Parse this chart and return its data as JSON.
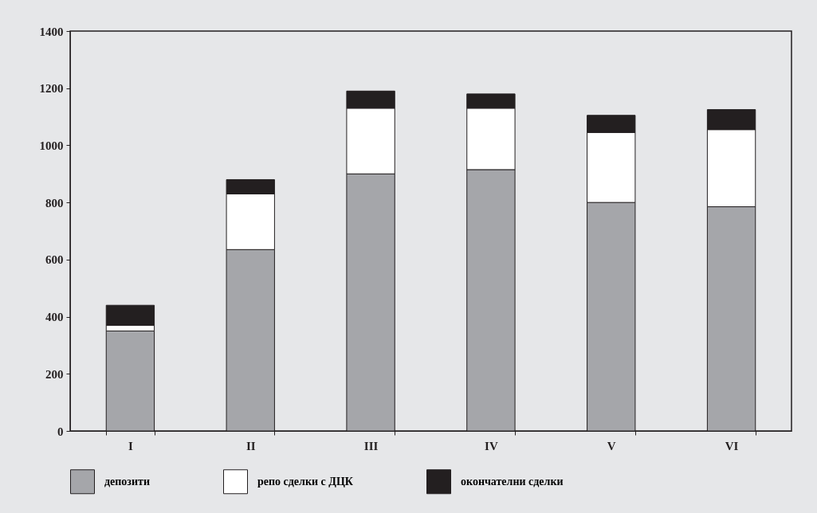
{
  "chart_data": {
    "type": "bar",
    "stacked": true,
    "categories": [
      "I",
      "II",
      "III",
      "IV",
      "V",
      "VI"
    ],
    "series": [
      {
        "name": "депозити",
        "color": "#a5a6aa",
        "values": [
          350,
          635,
          900,
          915,
          800,
          785
        ]
      },
      {
        "name": "репо сделки с ДЦК",
        "color": "#ffffff",
        "values": [
          20,
          195,
          230,
          215,
          245,
          270
        ]
      },
      {
        "name": "окончателни сделки",
        "color": "#231f20",
        "values": [
          70,
          50,
          60,
          50,
          60,
          70
        ]
      }
    ],
    "ylim": [
      0,
      1400
    ],
    "yticks": [
      0,
      200,
      400,
      600,
      800,
      1000,
      1200,
      1400
    ],
    "grid": false,
    "legend": "bottom"
  }
}
